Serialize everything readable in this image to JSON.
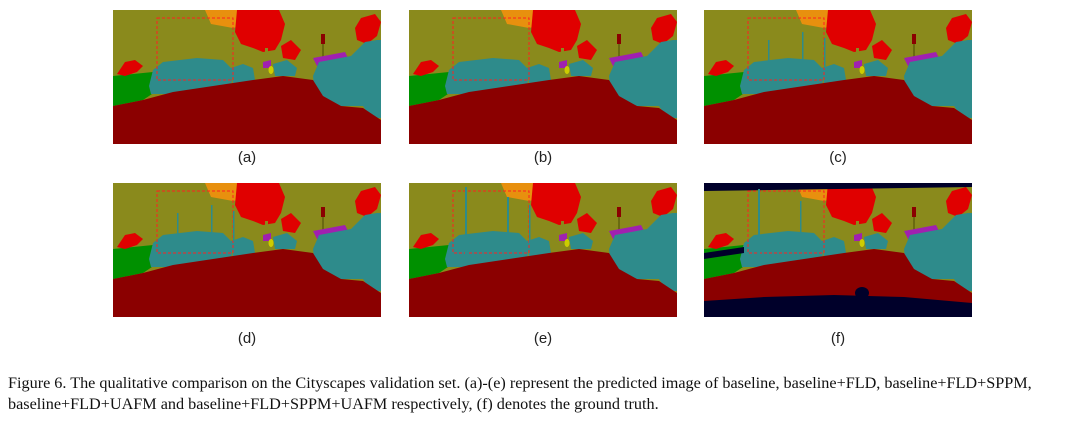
{
  "figure": {
    "panels": [
      {
        "id": "a",
        "label": "(a)",
        "variant": "base"
      },
      {
        "id": "b",
        "label": "(b)",
        "variant": "base"
      },
      {
        "id": "c",
        "label": "(c)",
        "variant": "poles"
      },
      {
        "id": "d",
        "label": "(d)",
        "variant": "poles"
      },
      {
        "id": "e",
        "label": "(e)",
        "variant": "poles2"
      },
      {
        "id": "f",
        "label": "(f)",
        "variant": "gt"
      }
    ],
    "caption": "Figure 6. The qualitative comparison on the Cityscapes validation set. (a)-(e) represent the predicted image of baseline, baseline+FLD, baseline+FLD+SPPM, baseline+FLD+UAFM and baseline+FLD+SPPM+UAFM respectively, (f) denotes the ground truth.",
    "colors": {
      "building": "#8a8a1c",
      "road": "#8b0000",
      "vegetation": "#e00000",
      "car": "#2e8b8b",
      "sidewalk": "#009000",
      "sky": "#e8900e",
      "fence": "#a020b0",
      "traffic_sign": "#cccc00",
      "void": "#00002a",
      "highlight_box": "#ff2020"
    }
  }
}
